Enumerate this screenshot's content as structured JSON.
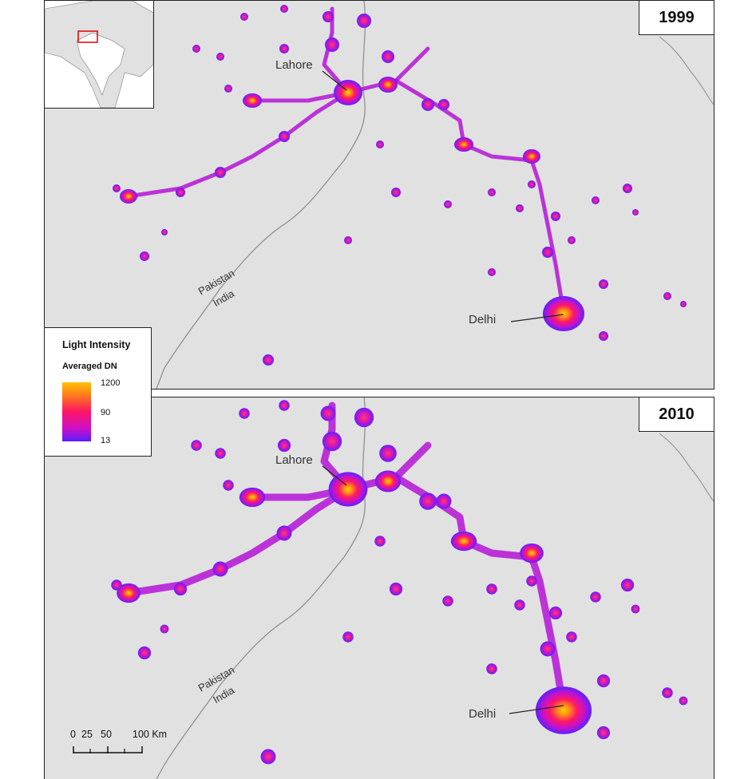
{
  "panels": [
    {
      "year": "1999",
      "cities": [
        {
          "name": "Lahore"
        },
        {
          "name": "Delhi"
        }
      ]
    },
    {
      "year": "2010",
      "cities": [
        {
          "name": "Lahore"
        },
        {
          "name": "Delhi"
        }
      ]
    }
  ],
  "border_labels": {
    "upper": "Pakistan",
    "lower": "India"
  },
  "legend": {
    "title": "Light Intensity",
    "subtitle": "Averaged DN",
    "max_label": "1200",
    "mid_label": "90",
    "min_label": "13",
    "ramp_colors": [
      "#ffc000",
      "#ff7a1e",
      "#ff1464",
      "#cc10c8",
      "#5a1cff"
    ]
  },
  "scale_bar": {
    "labels": [
      "0",
      "25",
      "50",
      "100 Km"
    ]
  },
  "colors": {
    "background": "#e1e1e1",
    "border": "#888888",
    "inset_highlight": "#e00000"
  }
}
